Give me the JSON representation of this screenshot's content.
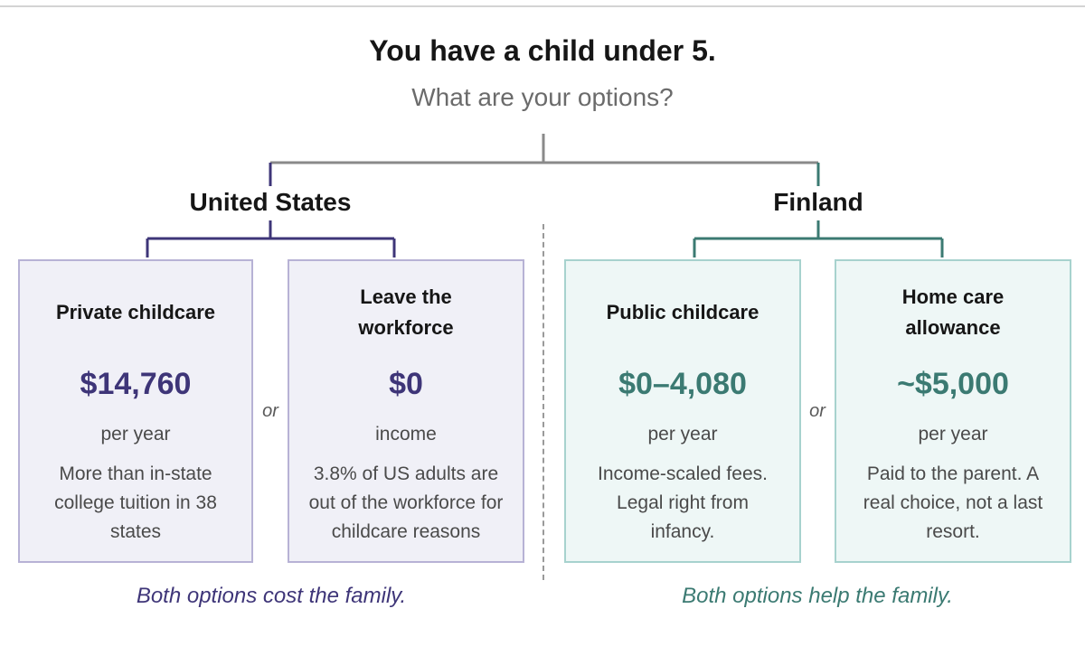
{
  "title": "You have a child under 5.",
  "subtitle": "What are your options?",
  "colors": {
    "us_accent": "#3e3578",
    "us_border": "#b7b2d5",
    "us_fill": "#f0f0f7",
    "fi_accent": "#3b7a72",
    "fi_border": "#a7d2ce",
    "fi_fill": "#eef7f6",
    "connector_gray": "#8a8a8a"
  },
  "united_states": {
    "label": "United States",
    "options": [
      {
        "title": "Private childcare",
        "value": "$14,760",
        "unit": "per year",
        "description": "More than in-state college tuition in 38 states"
      },
      {
        "title": "Leave the workforce",
        "value": "$0",
        "unit": "income",
        "description": "3.8% of US adults are out of the workforce for childcare reasons"
      }
    ],
    "or_label": "or",
    "summary": "Both options cost the family."
  },
  "finland": {
    "label": "Finland",
    "options": [
      {
        "title": "Public childcare",
        "value": "$0–4,080",
        "unit": "per year",
        "description": "Income-scaled fees. Legal right from infancy."
      },
      {
        "title": "Home care allowance",
        "value": "~$5,000",
        "unit": "per year",
        "description": "Paid to the parent. A real choice, not a last resort."
      }
    ],
    "or_label": "or",
    "summary": "Both options help the family."
  }
}
